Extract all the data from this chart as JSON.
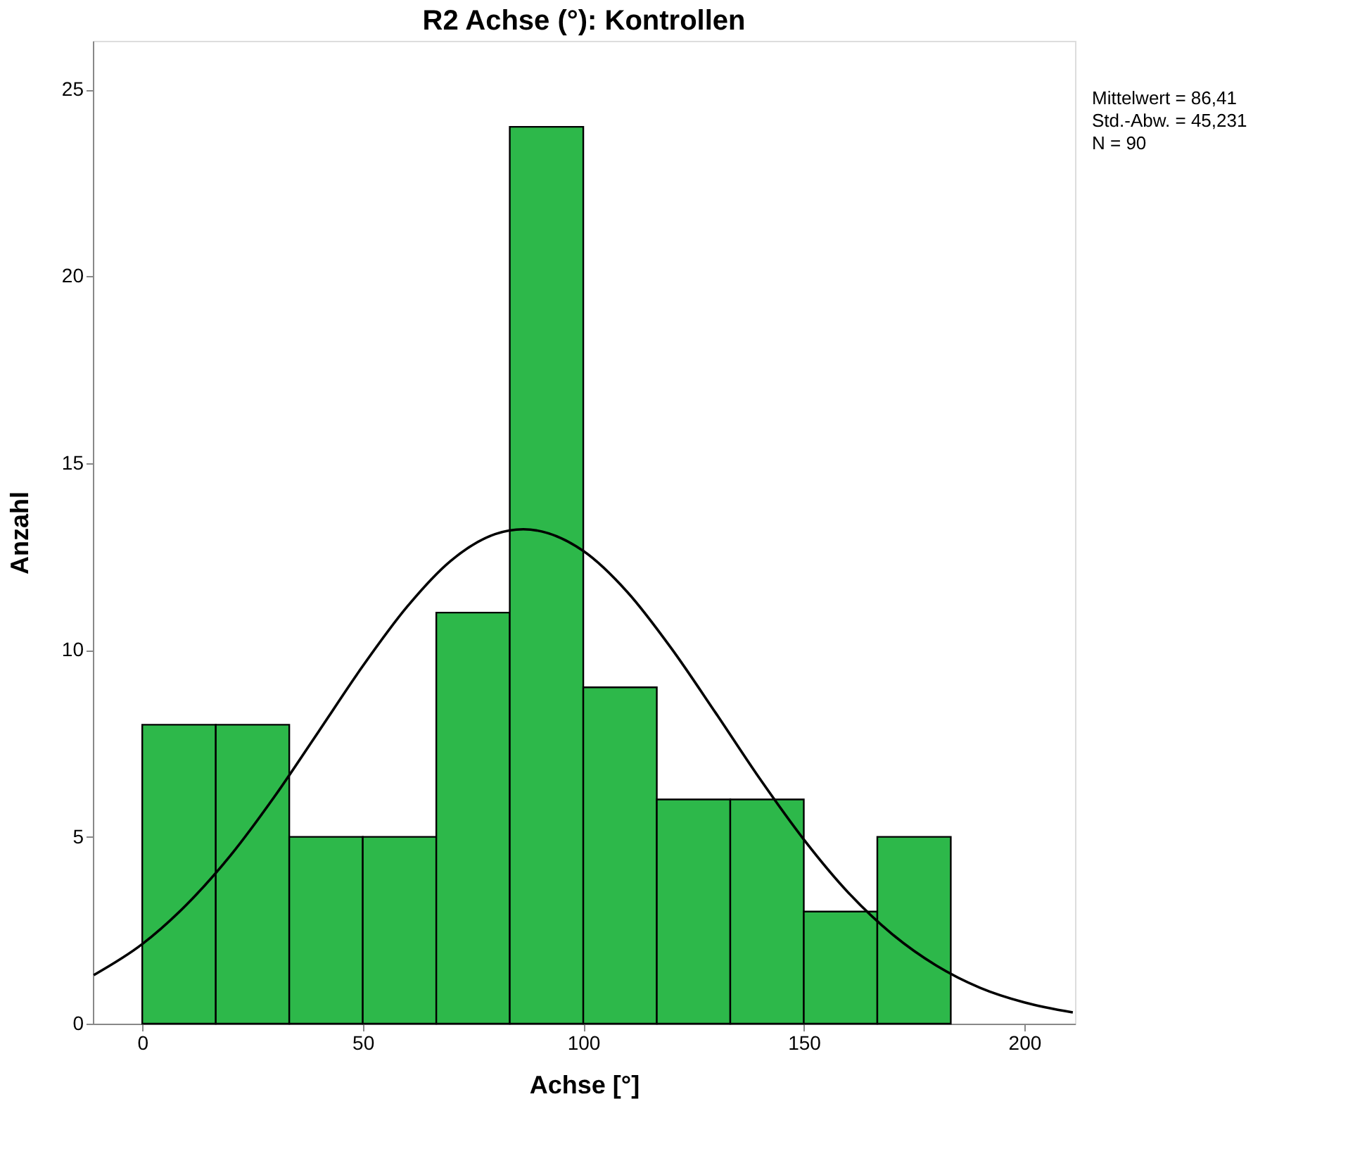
{
  "chart_data": {
    "type": "histogram",
    "title": "R2 Achse (°): Kontrollen",
    "xlabel": "Achse [°]",
    "ylabel": "Anzahl",
    "bins": [
      0,
      16.67,
      33.33,
      50,
      66.67,
      83.33,
      100,
      116.67,
      133.33,
      150,
      166.67,
      183.33
    ],
    "values": [
      8,
      8,
      5,
      5,
      11,
      24,
      9,
      6,
      6,
      3,
      5
    ],
    "color": "#2db84a",
    "series": [
      {
        "type": "line",
        "color": "#000000",
        "x": [
          -11,
          0,
          10,
          20,
          30,
          40,
          50,
          60,
          70,
          80,
          86.41,
          100,
          110,
          120,
          130,
          140,
          150,
          160,
          170,
          180,
          190,
          200,
          211
        ],
        "values": [
          1.3,
          2.13,
          3.18,
          4.5,
          6.08,
          7.82,
          9.57,
          11.15,
          12.39,
          13.1,
          13.23,
          12.65,
          11.55,
          10.04,
          8.32,
          6.56,
          4.93,
          3.52,
          2.4,
          1.56,
          0.96,
          0.57,
          0.3
        ]
      }
    ],
    "xlim": [
      -11.2,
      211.5
    ],
    "xticks": [
      0,
      50,
      100,
      150,
      200
    ],
    "ylim": [
      0,
      26.3
    ],
    "yticks": [
      0,
      5,
      10,
      15,
      20,
      25
    ],
    "grid": false,
    "annotations": [
      "Mittelwert = 86,41",
      "Std.-Abw. = 45,231",
      "N = 90"
    ]
  }
}
